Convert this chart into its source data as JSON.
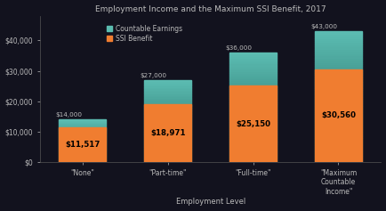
{
  "title": "Employment Income and the Maximum SSI Benefit, 2017",
  "xlabel": "Employment Level",
  "categories": [
    "\"None\"",
    "\"Part-time\"",
    "\"Full-time\"",
    "\"Maximum\nCountable\nIncome\""
  ],
  "teal_values": [
    14000,
    27000,
    36000,
    43000
  ],
  "orange_values": [
    11517,
    18971,
    25150,
    30560
  ],
  "orange_labels": [
    "$11,517",
    "$18,971",
    "$25,150",
    "$30,560"
  ],
  "teal_top_labels": [
    "$14,000",
    "$27,000",
    "$36,000",
    "$43,000"
  ],
  "teal_color_top": "#5bbcb0",
  "teal_color_bottom": "#1a5c52",
  "orange_color": "#f07d30",
  "background_color": "#12121e",
  "text_color": "#bbbbbb",
  "legend_teal_label": "Countable Earnings",
  "legend_orange_label": "SSI Benefit",
  "ylim": [
    0,
    48000
  ],
  "yticks": [
    0,
    10000,
    20000,
    30000,
    40000
  ],
  "ytick_labels": [
    "$0",
    "$10,000",
    "$20,000",
    "$30,000",
    "$40,000"
  ],
  "bar_width": 0.55
}
